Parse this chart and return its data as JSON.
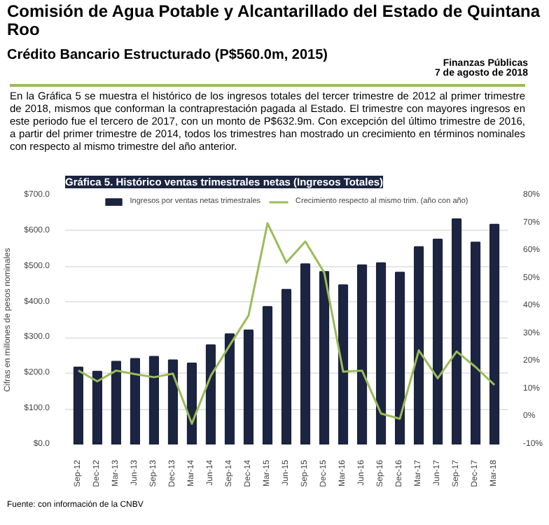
{
  "chart_data": {
    "type": "bar",
    "title": "Gráfica 5. Histórico ventas trimestrales netas (Ingresos Totales)",
    "subtitle": "Comisión de Agua Potable y Alcantarillado del Estado de Quintana Roo",
    "annotations": [
      "Crédito Bancario Estructurado (P$560.0m, 2015)",
      "Finanzas Públicas",
      "7 de agosto de 2018",
      "En la Gráfica 5 se muestra el histórico de los ingresos totales del tercer trimestre de 2012 al primer trimestre de 2018, mismos que conforman la contraprestación pagada al Estado. El trimestre con mayores ingresos en este periodo fue el tercero de 2017, con un monto de P$632.9m. Con excepción del último trimestre de 2016, a partir del primer trimestre de 2014, todos los trimestres han mostrado un crecimiento en términos nominales con respecto al mismo trimestre del año anterior.",
      "Fuente: con información de la CNBV"
    ],
    "ylabel": "Cifras en millones de pesos nominales",
    "categories": [
      "Sep-12",
      "Dec-12",
      "Mar-13",
      "Jun-13",
      "Sep-13",
      "Dec-13",
      "Mar-14",
      "Jun-14",
      "Sep-14",
      "Dec-14",
      "Mar-15",
      "Jun-15",
      "Sep-15",
      "Dec-15",
      "Mar-16",
      "Jun-16",
      "Sep-16",
      "Dec-16",
      "Mar-17",
      "Jun-17",
      "Sep-17",
      "Dec-17",
      "Mar-18"
    ],
    "series": [
      {
        "name": "Ingresos por ventas netas trimestrales",
        "color": "#1b2440",
        "values": [
          217,
          205,
          233,
          241,
          247,
          237,
          228,
          279,
          310,
          321,
          387,
          435,
          507,
          485,
          448,
          504,
          510,
          483,
          555,
          576,
          633,
          568,
          618
        ]
      },
      {
        "name": "Crecimiento respecto al mismo trim. (año con año)",
        "type": "line",
        "axis": "y2",
        "color": "#9bbb59",
        "values": [
          16.7,
          12.8,
          16.7,
          15.4,
          14.3,
          15.6,
          -2.5,
          14.8,
          25.8,
          36.6,
          69.9,
          55.7,
          63.3,
          52.1,
          16.3,
          16.7,
          1.2,
          -0.7,
          24,
          13.9,
          23.6,
          18,
          11.5
        ]
      }
    ],
    "ylim": [
      0,
      700
    ],
    "yticks": [
      {
        "value": 0,
        "label": "$0.0"
      },
      {
        "value": 100,
        "label": "$100.0"
      },
      {
        "value": 200,
        "label": "$200.0"
      },
      {
        "value": 300,
        "label": "$300.0"
      },
      {
        "value": 400,
        "label": "$400.0"
      },
      {
        "value": 500,
        "label": "$500.0"
      },
      {
        "value": 600,
        "label": "$600.0"
      },
      {
        "value": 700,
        "label": "$700.0"
      }
    ],
    "y2lim": [
      -10,
      80
    ],
    "y2ticks": [
      {
        "value": -10,
        "label": "-10%"
      },
      {
        "value": 0,
        "label": "0%"
      },
      {
        "value": 10,
        "label": "10%"
      },
      {
        "value": 20,
        "label": "20%"
      },
      {
        "value": 30,
        "label": "30%"
      },
      {
        "value": 40,
        "label": "40%"
      },
      {
        "value": 50,
        "label": "50%"
      },
      {
        "value": 60,
        "label": "60%"
      },
      {
        "value": 70,
        "label": "70%"
      },
      {
        "value": 80,
        "label": "80%"
      }
    ],
    "grid": "y",
    "legend": "top"
  }
}
